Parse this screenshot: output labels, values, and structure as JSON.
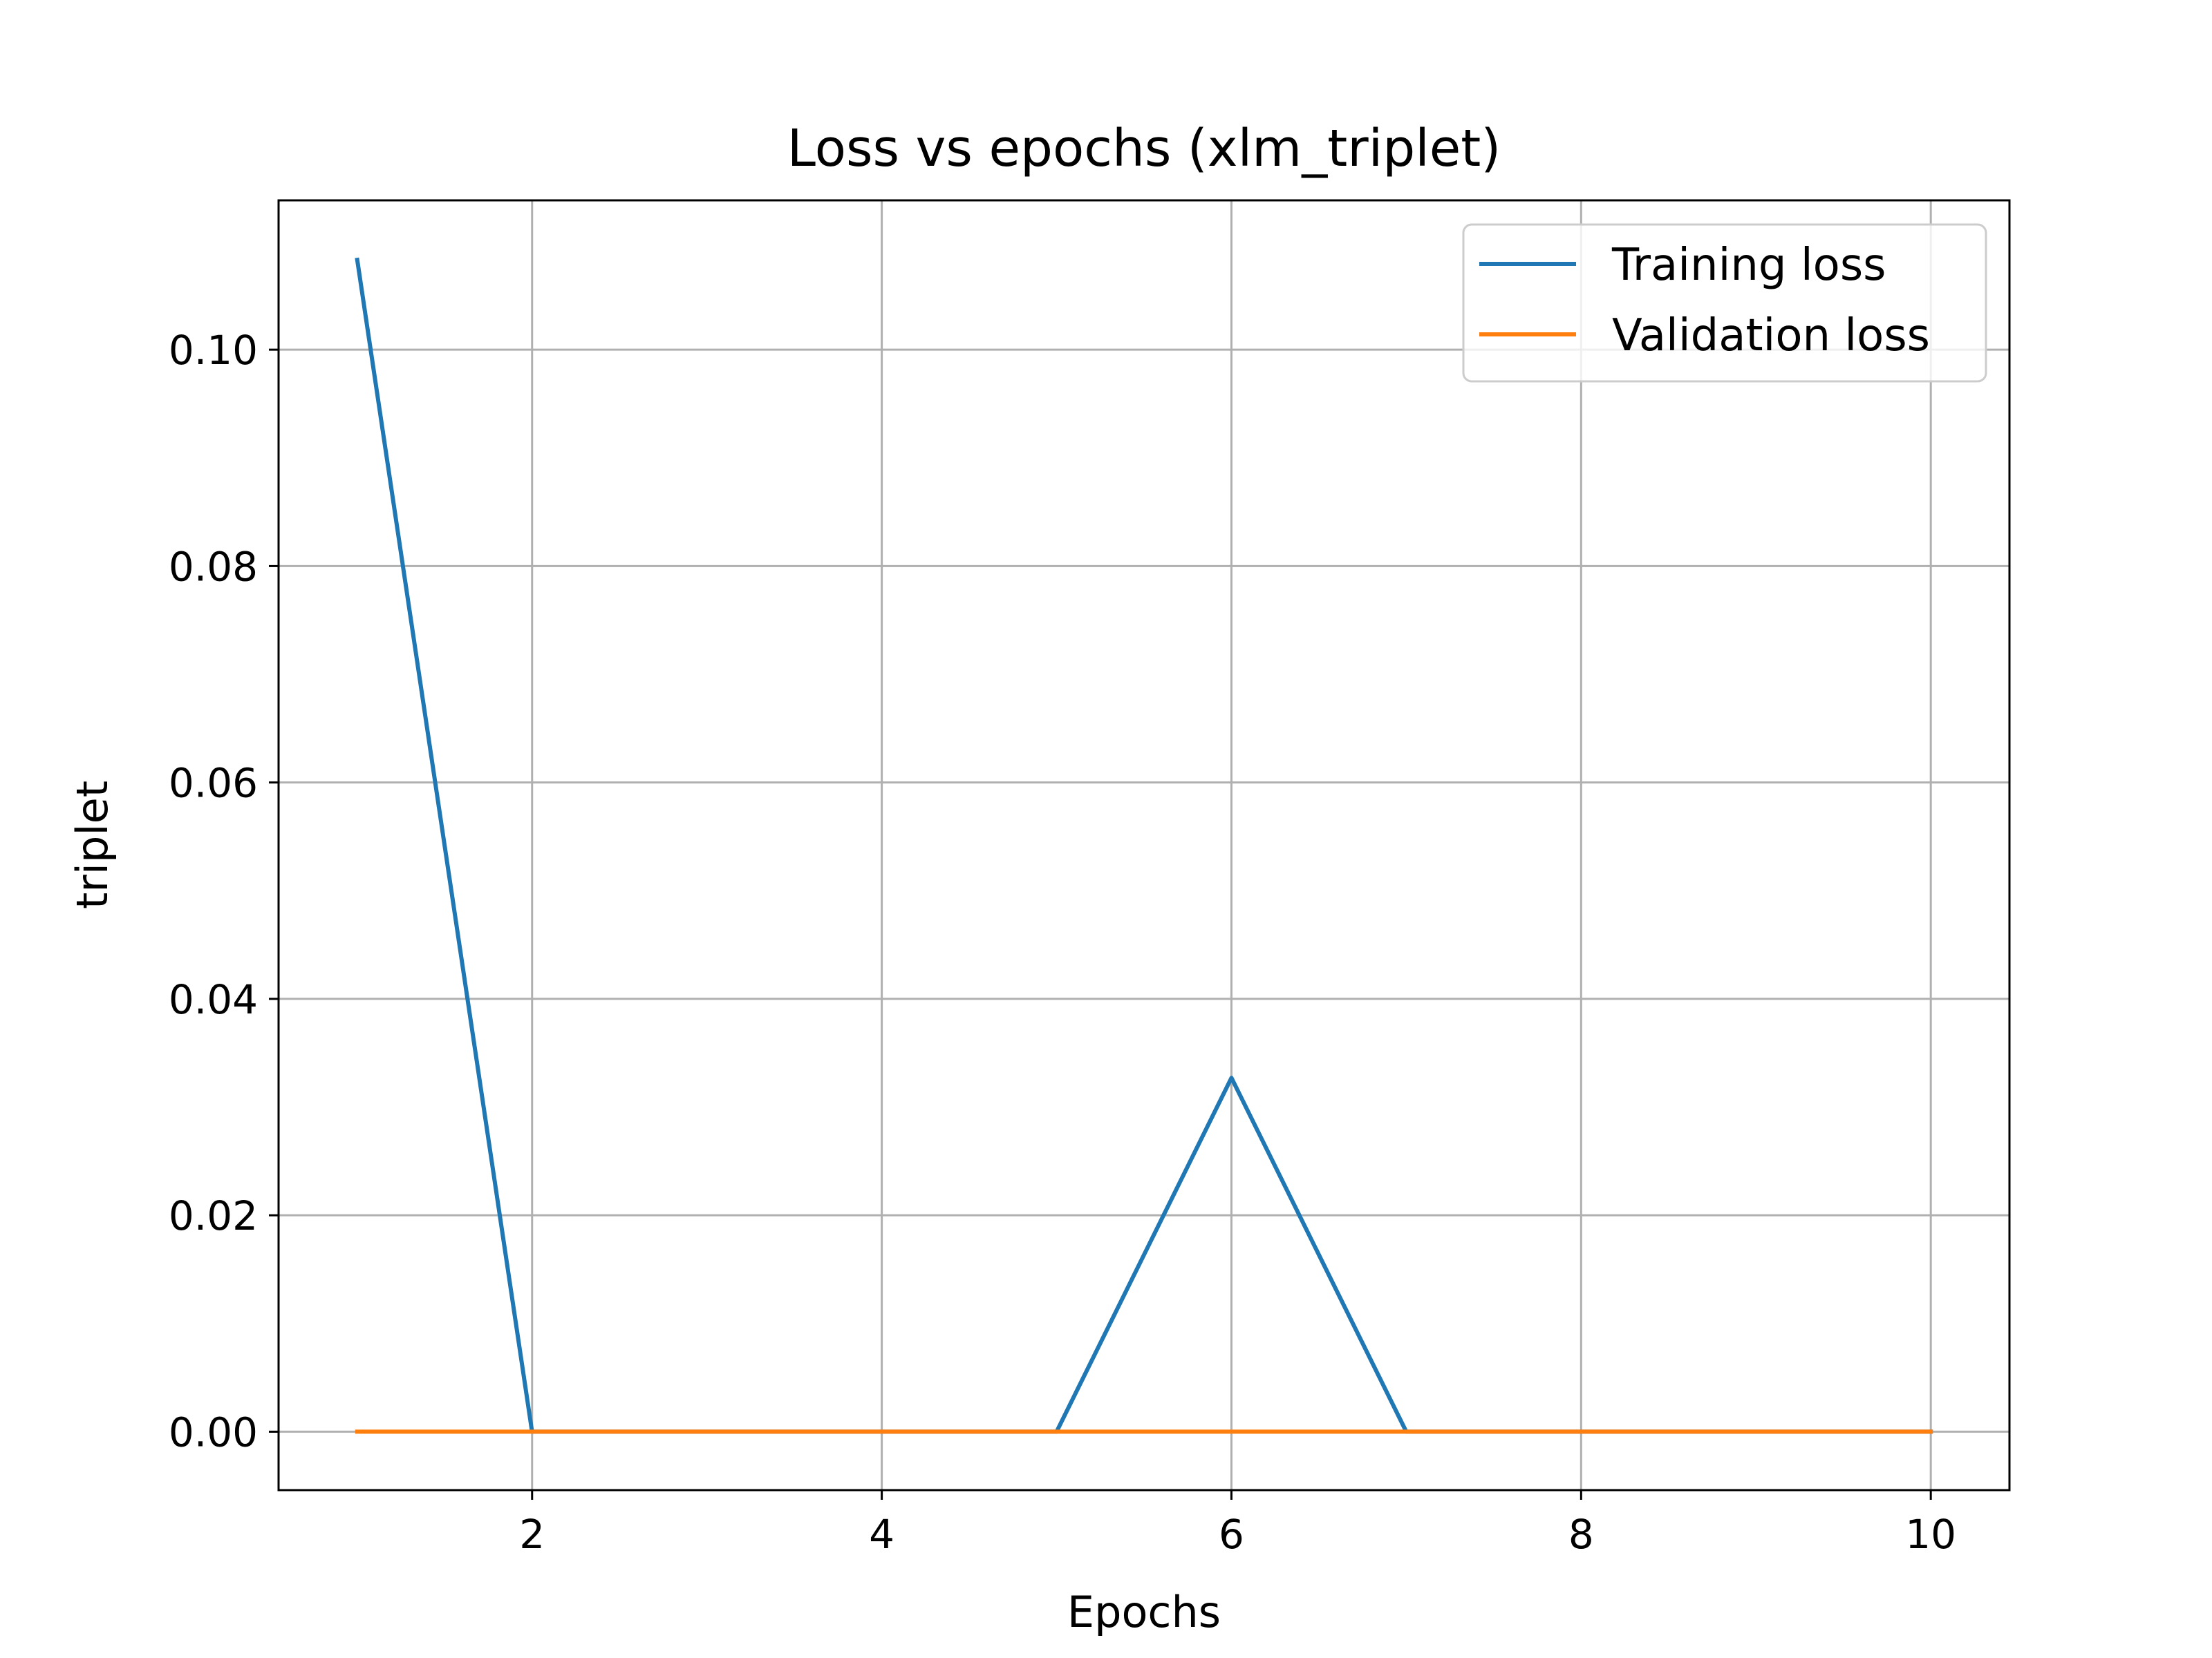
{
  "chart_data": {
    "type": "line",
    "title": "Loss vs epochs (xlm_triplet)",
    "xlabel": "Epochs",
    "ylabel": "triplet",
    "x": [
      1,
      2,
      3,
      4,
      5,
      6,
      7,
      8,
      9,
      10
    ],
    "xticks": [
      2,
      4,
      6,
      8,
      10
    ],
    "xtick_labels": [
      "2",
      "4",
      "6",
      "8",
      "10"
    ],
    "yticks": [
      0,
      0.02,
      0.04,
      0.06,
      0.08,
      0.1
    ],
    "ytick_labels": [
      "0.00",
      "0.02",
      "0.04",
      "0.06",
      "0.08",
      "0.10"
    ],
    "xlim": [
      0.55,
      10.45
    ],
    "ylim": [
      -0.0054,
      0.1138
    ],
    "grid": true,
    "legend_position": "top-right",
    "series": [
      {
        "name": "Training loss",
        "color": "#1f77b4",
        "values": [
          0.1083,
          0.0,
          0.0,
          0.0,
          0.0,
          0.0327,
          0.0,
          0.0,
          0.0,
          0.0
        ]
      },
      {
        "name": "Validation loss",
        "color": "#ff7f0e",
        "values": [
          0.0,
          0.0,
          0.0,
          0.0,
          0.0,
          0.0,
          0.0,
          0.0,
          0.0,
          0.0
        ]
      }
    ]
  }
}
